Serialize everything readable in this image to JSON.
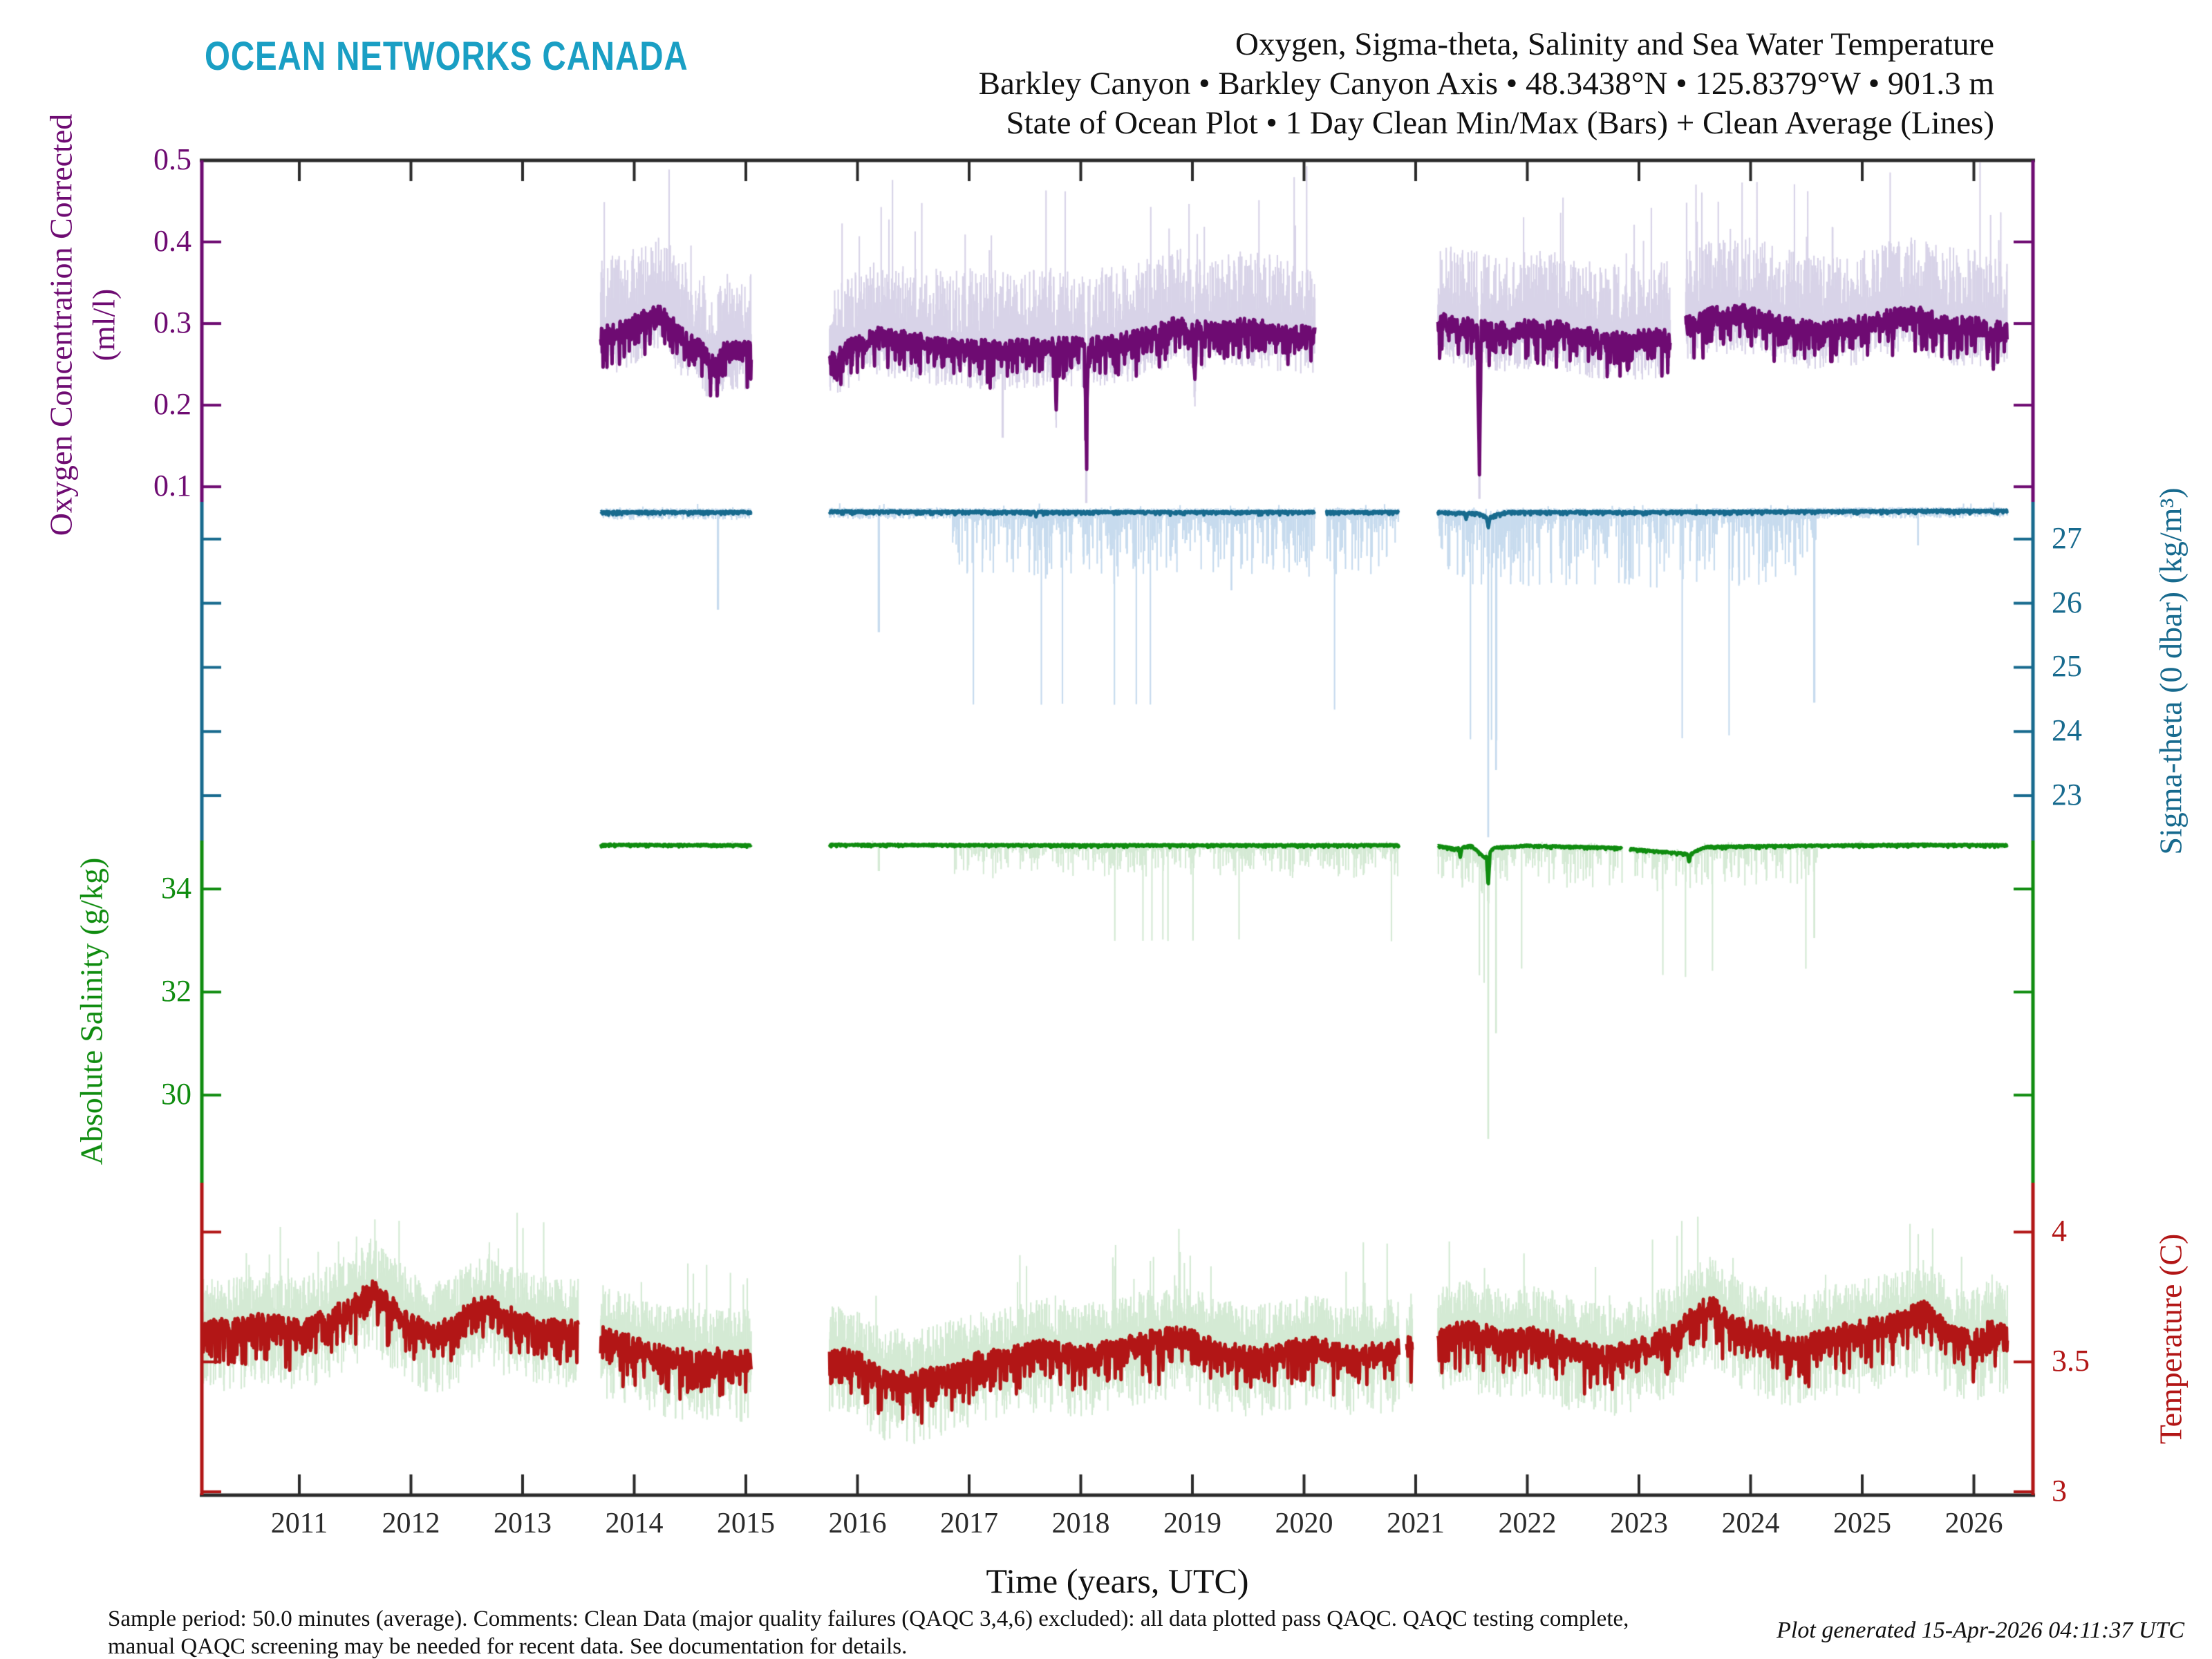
{
  "logo_text": "OCEAN NETWORKS CANADA",
  "title": {
    "line1": "Oxygen, Sigma-theta, Salinity and Sea Water Temperature",
    "line2": "Barkley Canyon • Barkley Canyon Axis • 48.3438°N • 125.8379°W • 901.3 m",
    "line3": "State of Ocean Plot • 1 Day Clean Min/Max (Bars) + Clean Average (Lines)"
  },
  "footnote": {
    "line1": "Sample period: 50.0 minutes (average). Comments: Clean Data (major quality failures (QAQC 3,4,6) excluded): all data plotted pass QAQC. QAQC testing complete,",
    "line2": "manual QAQC screening may be needed for recent data. See documentation for details."
  },
  "generated_text": "Plot generated 15-Apr-2026 04:11:37 UTC",
  "colors": {
    "logo": "#1a9fc4",
    "axis_frame": "#2b2b2b",
    "oxygen": "#6e0b72",
    "oxygen_bar": "#d8d3e8",
    "sigma": "#176a8e",
    "sigma_bar": "#c7dbee",
    "salinity": "#0f8c0f",
    "salinity_bar": "#d5ead5",
    "temperature": "#b21616",
    "temperature_bar": "#d4ead4"
  },
  "chart_data": {
    "type": "line",
    "title": "Oxygen, Sigma-theta, Salinity and Sea Water Temperature",
    "xlabel": "Time (years, UTC)",
    "x_axis": {
      "range": [
        2010.13,
        2026.53
      ],
      "tick_years": [
        2011,
        2012,
        2013,
        2014,
        2015,
        2016,
        2017,
        2018,
        2019,
        2020,
        2021,
        2022,
        2023,
        2024,
        2025,
        2026
      ]
    },
    "legend": "1 Day Clean Min/Max (Bars) + Clean Average (Lines)",
    "series": [
      {
        "id": "oxygen",
        "axis_label": "Oxygen Concentration Corrected",
        "axis_units": "(ml/l)",
        "axis_side": "left",
        "tick_labels": [
          "0.5",
          "0.4",
          "0.3",
          "0.2",
          "0.1"
        ],
        "tick_values": [
          0.5,
          0.4,
          0.3,
          0.2,
          0.1
        ],
        "range_top": 0.5,
        "range_bottom": 0.0815,
        "noise": 0.012,
        "bar_up": [
          0.018,
          0.095
        ],
        "bar_down": [
          0.01,
          0.05
        ],
        "segments": [
          [
            2013.7,
            2015.05
          ],
          [
            2015.75,
            2020.1
          ],
          [
            2021.2,
            2023.28
          ],
          [
            2023.42,
            2026.3
          ]
        ],
        "anchors": [
          [
            2013.7,
            0.285
          ],
          [
            2013.9,
            0.292
          ],
          [
            2014.05,
            0.302
          ],
          [
            2014.2,
            0.313
          ],
          [
            2014.3,
            0.305
          ],
          [
            2014.45,
            0.282
          ],
          [
            2014.6,
            0.268
          ],
          [
            2014.72,
            0.248
          ],
          [
            2014.82,
            0.268
          ],
          [
            2015.05,
            0.268
          ],
          [
            2015.75,
            0.252
          ],
          [
            2015.95,
            0.272
          ],
          [
            2016.15,
            0.285
          ],
          [
            2016.5,
            0.278
          ],
          [
            2016.9,
            0.27
          ],
          [
            2017.3,
            0.268
          ],
          [
            2017.7,
            0.272
          ],
          [
            2018.1,
            0.272
          ],
          [
            2018.5,
            0.28
          ],
          [
            2018.85,
            0.298
          ],
          [
            2019.2,
            0.29
          ],
          [
            2019.5,
            0.296
          ],
          [
            2019.8,
            0.288
          ],
          [
            2020.1,
            0.285
          ],
          [
            2021.2,
            0.302
          ],
          [
            2021.5,
            0.295
          ],
          [
            2021.8,
            0.29
          ],
          [
            2022.1,
            0.295
          ],
          [
            2022.4,
            0.29
          ],
          [
            2022.7,
            0.278
          ],
          [
            2023.0,
            0.28
          ],
          [
            2023.28,
            0.285
          ],
          [
            2023.42,
            0.298
          ],
          [
            2023.7,
            0.31
          ],
          [
            2023.95,
            0.312
          ],
          [
            2024.3,
            0.298
          ],
          [
            2024.6,
            0.29
          ],
          [
            2024.9,
            0.296
          ],
          [
            2025.2,
            0.305
          ],
          [
            2025.45,
            0.312
          ],
          [
            2025.7,
            0.3
          ],
          [
            2026.0,
            0.296
          ],
          [
            2026.3,
            0.29
          ]
        ],
        "spikes": [
          [
            2021.57,
            0.115
          ],
          [
            2018.05,
            0.145
          ],
          [
            2017.78,
            0.205
          ],
          [
            2019.02,
            0.225
          ],
          [
            2022.9,
            0.245
          ]
        ],
        "bar_events": [
          [
            2018.05,
            0.08
          ],
          [
            2021.57,
            0.085
          ],
          [
            2017.3,
            0.16
          ]
        ],
        "bar_windows": []
      },
      {
        "id": "sigma",
        "axis_label": "Sigma-theta (0 dbar) (kg/m³)",
        "axis_units": "",
        "axis_side": "right",
        "tick_labels": [
          "27",
          "26",
          "25",
          "24",
          "23"
        ],
        "tick_values": [
          27,
          26,
          25,
          24,
          23
        ],
        "range_top": 27.58,
        "range_bottom": 22.3,
        "noise": 0.013,
        "bar_up": [
          0.02,
          0.06
        ],
        "bar_down": [
          0.03,
          0.12
        ],
        "segments": [
          [
            2013.7,
            2015.05
          ],
          [
            2015.75,
            2020.1
          ],
          [
            2020.2,
            2020.85
          ],
          [
            2021.2,
            2026.3
          ]
        ],
        "anchors": [
          [
            2013.7,
            27.42
          ],
          [
            2015.05,
            27.42
          ],
          [
            2015.75,
            27.43
          ],
          [
            2018,
            27.42
          ],
          [
            2020.85,
            27.42
          ],
          [
            2021.2,
            27.42
          ],
          [
            2021.55,
            27.4
          ],
          [
            2021.65,
            27.34
          ],
          [
            2021.8,
            27.42
          ],
          [
            2023,
            27.42
          ],
          [
            2024.5,
            27.43
          ],
          [
            2025.5,
            27.44
          ],
          [
            2026.3,
            27.44
          ]
        ],
        "spikes": [
          [
            2021.65,
            27.17
          ],
          [
            2021.45,
            27.33
          ],
          [
            2017.6,
            27.36
          ]
        ],
        "bar_events": [
          [
            2014.75,
            25.9
          ],
          [
            2016.19,
            25.55
          ],
          [
            2018.3,
            26.3
          ],
          [
            2019.35,
            26.2
          ],
          [
            2021.65,
            22.35
          ],
          [
            2021.72,
            23.4
          ],
          [
            2024.57,
            24.45
          ],
          [
            2025.5,
            26.9
          ]
        ],
        "bar_windows": [
          [
            2016.85,
            2020.85,
            0.9
          ],
          [
            2021.2,
            2024.6,
            1.05
          ]
        ]
      },
      {
        "id": "salinity",
        "axis_label": "Absolute Salinity (g/kg)",
        "axis_units": "",
        "axis_side": "left",
        "tick_labels": [
          "34",
          "32",
          "30"
        ],
        "tick_values": [
          34,
          32,
          30
        ],
        "range_top": 34.94,
        "range_bottom": 28.3,
        "noise": 0.012,
        "bar_up": [
          0.015,
          0.04
        ],
        "bar_down": [
          0.02,
          0.07
        ],
        "segments": [
          [
            2013.7,
            2015.05
          ],
          [
            2015.75,
            2020.85
          ],
          [
            2021.2,
            2022.85
          ],
          [
            2022.92,
            2026.3
          ]
        ],
        "anchors": [
          [
            2013.7,
            34.86
          ],
          [
            2015.05,
            34.85
          ],
          [
            2015.75,
            34.86
          ],
          [
            2018,
            34.85
          ],
          [
            2020.85,
            34.85
          ],
          [
            2021.2,
            34.84
          ],
          [
            2021.35,
            34.78
          ],
          [
            2021.5,
            34.84
          ],
          [
            2021.62,
            34.6
          ],
          [
            2021.7,
            34.8
          ],
          [
            2022,
            34.84
          ],
          [
            2022.8,
            34.8
          ],
          [
            2023.45,
            34.68
          ],
          [
            2023.6,
            34.82
          ],
          [
            2024.5,
            34.84
          ],
          [
            2025.5,
            34.86
          ],
          [
            2026.3,
            34.85
          ]
        ],
        "spikes": [
          [
            2021.65,
            34.05
          ],
          [
            2021.4,
            34.62
          ],
          [
            2023.45,
            34.52
          ]
        ],
        "bar_events": [
          [
            2016.19,
            34.35
          ],
          [
            2021.65,
            29.15
          ],
          [
            2021.72,
            31.2
          ],
          [
            2024.57,
            33.05
          ]
        ],
        "bar_windows": [
          [
            2016.85,
            2020.85,
            0.55
          ],
          [
            2021.2,
            2024.6,
            0.72
          ]
        ]
      },
      {
        "id": "temperature",
        "axis_label": "Temperature (C)",
        "axis_units": "",
        "axis_side": "right",
        "tick_labels": [
          "4",
          "3.5",
          "3"
        ],
        "tick_values": [
          4,
          3.5,
          3
        ],
        "range_top": 4.19,
        "range_bottom": 2.987,
        "noise": 0.042,
        "bar_up": [
          0.05,
          0.2
        ],
        "bar_down": [
          0.05,
          0.24
        ],
        "segments": [
          [
            2010.13,
            2013.5
          ],
          [
            2013.7,
            2015.05
          ],
          [
            2015.75,
            2020.85
          ],
          [
            2020.92,
            2020.97
          ],
          [
            2021.2,
            2026.3
          ]
        ],
        "anchors": [
          [
            2010.13,
            3.62
          ],
          [
            2010.4,
            3.63
          ],
          [
            2010.7,
            3.65
          ],
          [
            2011.0,
            3.62
          ],
          [
            2011.3,
            3.68
          ],
          [
            2011.5,
            3.72
          ],
          [
            2011.65,
            3.78
          ],
          [
            2011.8,
            3.72
          ],
          [
            2012.0,
            3.65
          ],
          [
            2012.2,
            3.6
          ],
          [
            2012.4,
            3.65
          ],
          [
            2012.55,
            3.7
          ],
          [
            2012.7,
            3.72
          ],
          [
            2012.85,
            3.68
          ],
          [
            2013.0,
            3.65
          ],
          [
            2013.2,
            3.63
          ],
          [
            2013.5,
            3.62
          ],
          [
            2013.7,
            3.6
          ],
          [
            2014.0,
            3.56
          ],
          [
            2014.3,
            3.52
          ],
          [
            2014.6,
            3.5
          ],
          [
            2014.8,
            3.52
          ],
          [
            2015.05,
            3.5
          ],
          [
            2015.75,
            3.52
          ],
          [
            2016.0,
            3.5
          ],
          [
            2016.2,
            3.44
          ],
          [
            2016.5,
            3.42
          ],
          [
            2016.8,
            3.46
          ],
          [
            2017.1,
            3.5
          ],
          [
            2017.4,
            3.52
          ],
          [
            2017.7,
            3.55
          ],
          [
            2018.0,
            3.52
          ],
          [
            2018.3,
            3.55
          ],
          [
            2018.6,
            3.58
          ],
          [
            2018.9,
            3.6
          ],
          [
            2019.2,
            3.55
          ],
          [
            2019.5,
            3.52
          ],
          [
            2019.8,
            3.54
          ],
          [
            2020.1,
            3.56
          ],
          [
            2020.4,
            3.52
          ],
          [
            2020.85,
            3.55
          ],
          [
            2021.2,
            3.6
          ],
          [
            2021.5,
            3.62
          ],
          [
            2021.8,
            3.58
          ],
          [
            2022.1,
            3.6
          ],
          [
            2022.4,
            3.55
          ],
          [
            2022.7,
            3.52
          ],
          [
            2023.0,
            3.55
          ],
          [
            2023.3,
            3.6
          ],
          [
            2023.5,
            3.68
          ],
          [
            2023.65,
            3.72
          ],
          [
            2023.8,
            3.65
          ],
          [
            2024.1,
            3.6
          ],
          [
            2024.4,
            3.55
          ],
          [
            2024.7,
            3.6
          ],
          [
            2025.0,
            3.62
          ],
          [
            2025.3,
            3.65
          ],
          [
            2025.55,
            3.7
          ],
          [
            2025.8,
            3.6
          ],
          [
            2026.0,
            3.58
          ],
          [
            2026.15,
            3.62
          ],
          [
            2026.3,
            3.6
          ]
        ],
        "spikes": [],
        "bar_events": [],
        "bar_windows": []
      }
    ]
  }
}
